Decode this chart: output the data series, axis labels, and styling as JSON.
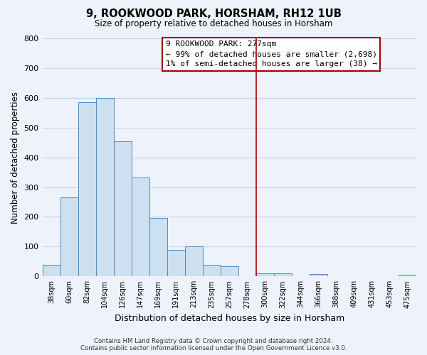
{
  "title": "9, ROOKWOOD PARK, HORSHAM, RH12 1UB",
  "subtitle": "Size of property relative to detached houses in Horsham",
  "xlabel": "Distribution of detached houses by size in Horsham",
  "ylabel": "Number of detached properties",
  "bar_labels": [
    "38sqm",
    "60sqm",
    "82sqm",
    "104sqm",
    "126sqm",
    "147sqm",
    "169sqm",
    "191sqm",
    "213sqm",
    "235sqm",
    "257sqm",
    "278sqm",
    "300sqm",
    "322sqm",
    "344sqm",
    "366sqm",
    "388sqm",
    "409sqm",
    "431sqm",
    "453sqm",
    "475sqm"
  ],
  "bar_values": [
    38,
    265,
    585,
    600,
    453,
    332,
    196,
    90,
    100,
    38,
    33,
    0,
    10,
    11,
    0,
    8,
    0,
    0,
    0,
    0,
    5
  ],
  "bar_color": "#cde0f0",
  "bar_edge_color": "#5588bb",
  "ylim": [
    0,
    800
  ],
  "yticks": [
    0,
    100,
    200,
    300,
    400,
    500,
    600,
    700,
    800
  ],
  "vline_x": 11.5,
  "vline_color": "#aa0000",
  "annotation_title": "9 ROOKWOOD PARK: 277sqm",
  "annotation_line1": "← 99% of detached houses are smaller (2,698)",
  "annotation_line2": "1% of semi-detached houses are larger (38) →",
  "footer1": "Contains HM Land Registry data © Crown copyright and database right 2024.",
  "footer2": "Contains public sector information licensed under the Open Government Licence v3.0.",
  "bg_color": "#eef2fa",
  "grid_color": "#c8d4e8"
}
